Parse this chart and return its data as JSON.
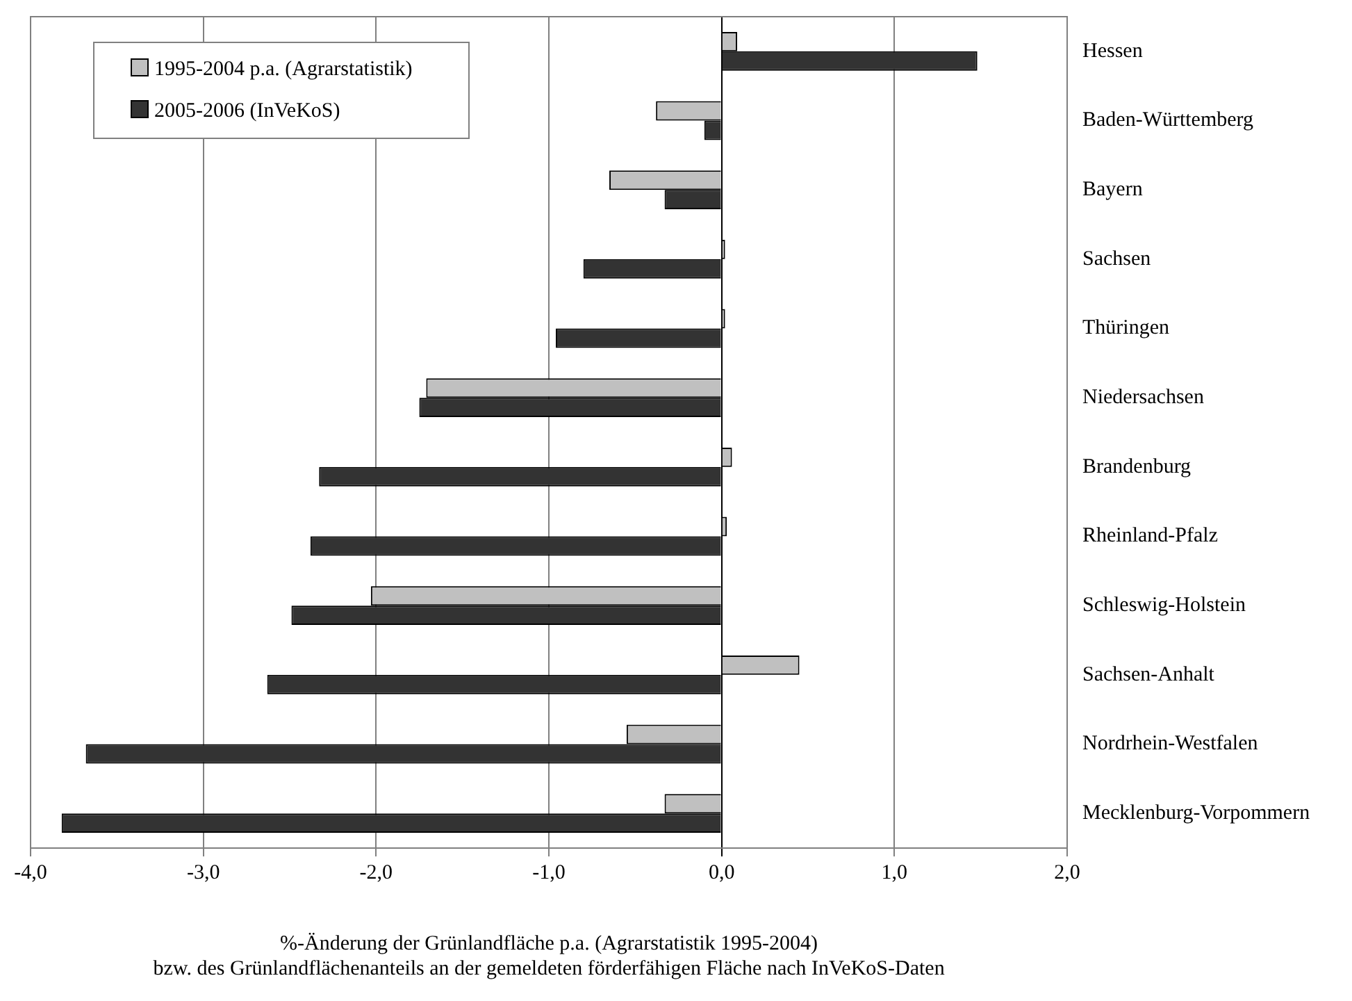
{
  "chart_data": {
    "type": "bar",
    "orientation": "horizontal",
    "categories": [
      "Hessen",
      "Baden-Württemberg",
      "Bayern",
      "Sachsen",
      "Thüringen",
      "Niedersachsen",
      "Brandenburg",
      "Rheinland-Pfalz",
      "Schleswig-Holstein",
      "Sachsen-Anhalt",
      "Nordrhein-Westfalen",
      "Mecklenburg-Vorpommern"
    ],
    "series": [
      {
        "name": "1995-2004 p.a.  (Agrarstatistik)",
        "color": "#c0c0c0",
        "values": [
          0.09,
          -0.38,
          -0.65,
          0.02,
          0.02,
          -1.71,
          0.06,
          0.03,
          -2.03,
          0.45,
          -0.55,
          -0.33
        ]
      },
      {
        "name": "2005-2006 (InVeKoS)",
        "color": "#333333",
        "values": [
          1.48,
          -0.1,
          -0.33,
          -0.8,
          -0.96,
          -1.75,
          -2.33,
          -2.38,
          -2.49,
          -2.63,
          -3.68,
          -3.82
        ]
      }
    ],
    "xlim": [
      -4,
      2
    ],
    "xticks": [
      {
        "value": -4,
        "label": "-4,0"
      },
      {
        "value": -3,
        "label": "-3,0"
      },
      {
        "value": -2,
        "label": "-2,0"
      },
      {
        "value": -1,
        "label": "-1,0"
      },
      {
        "value": 0,
        "label": "0,0"
      },
      {
        "value": 1,
        "label": "1,0"
      },
      {
        "value": 2,
        "label": "2,0"
      }
    ],
    "xlabel": "%-Änderung der Grünlandfläche p.a. (Agrarstatistik 1995-2004)\nbzw. des Grünlandflächenanteils an der gemeldeten förderfähigen Fläche nach InVeKoS-Daten",
    "grid": "x",
    "legend": "top left"
  }
}
